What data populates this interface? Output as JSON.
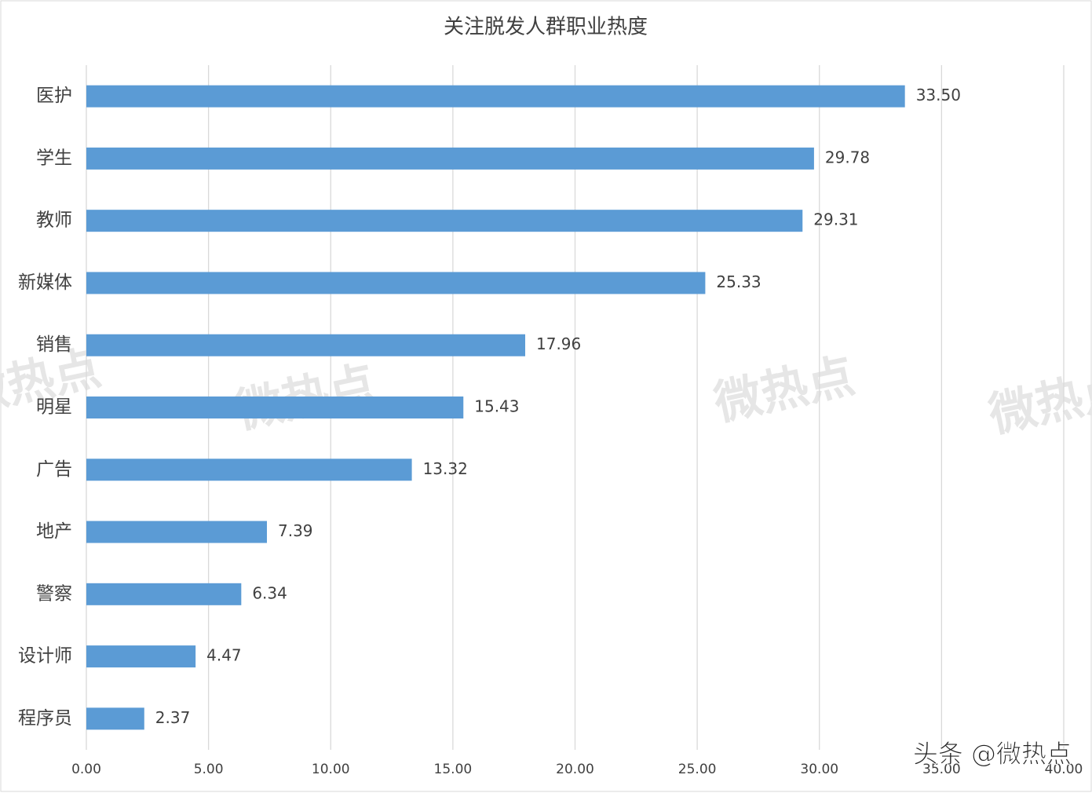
{
  "chart_data": {
    "type": "bar",
    "orientation": "horizontal",
    "title": "关注脱发人群职业热度",
    "categories": [
      "医护",
      "学生",
      "教师",
      "新媒体",
      "销售",
      "明星",
      "广告",
      "地产",
      "警察",
      "设计师",
      "程序员"
    ],
    "values": [
      33.5,
      29.78,
      29.31,
      25.33,
      17.96,
      15.43,
      13.32,
      7.39,
      6.34,
      4.47,
      2.37
    ],
    "value_labels": [
      "33.50",
      "29.78",
      "29.31",
      "25.33",
      "17.96",
      "15.43",
      "13.32",
      "7.39",
      "6.34",
      "4.47",
      "2.37"
    ],
    "color": "#5b9bd5",
    "xlim": [
      0,
      40
    ],
    "xticks": [
      {
        "value": 0,
        "label": "0.00"
      },
      {
        "value": 5,
        "label": "5.00"
      },
      {
        "value": 10,
        "label": "10.00"
      },
      {
        "value": 15,
        "label": "15.00"
      },
      {
        "value": 20,
        "label": "20.00"
      },
      {
        "value": 25,
        "label": "25.00"
      },
      {
        "value": 30,
        "label": "30.00"
      },
      {
        "value": 35,
        "label": "35.00"
      },
      {
        "value": 40,
        "label": "40.00"
      }
    ],
    "grid": true,
    "watermark": "微热点",
    "footer_watermark": "头条 @微热点"
  }
}
